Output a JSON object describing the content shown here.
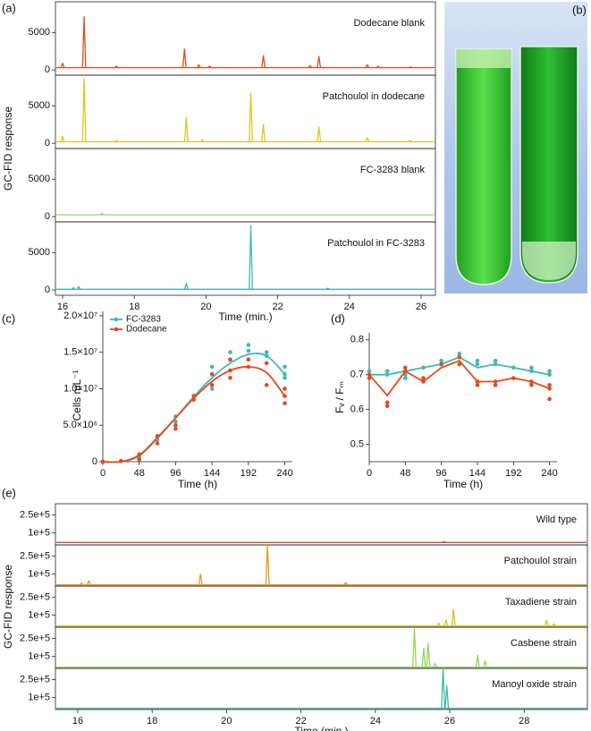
{
  "chart_data": [
    {
      "type": "chromatogram",
      "panel_label": "(a)",
      "ylabel": "GC-FID response",
      "xlabel": "Time (min.)",
      "xlim": [
        15.8,
        26.4
      ],
      "xticks": [
        16,
        18,
        20,
        22,
        24,
        26
      ],
      "ylim": [
        -700,
        9100
      ],
      "yticks": [
        0,
        5000
      ],
      "series": [
        {
          "name": "Dodecane blank",
          "color": "#e8481c",
          "baseline": 300,
          "peak_x": [
            16.0,
            16.6,
            17.5,
            19.4,
            19.8,
            20.1,
            21.6,
            22.9,
            23.15,
            24.5,
            24.8,
            25.7
          ],
          "peak_height": [
            900,
            7100,
            500,
            2800,
            700,
            500,
            1900,
            600,
            1800,
            700,
            500,
            400
          ]
        },
        {
          "name": "Patchoulol in dodecane",
          "color": "#e7c21c",
          "baseline": 200,
          "peak_x": [
            16.0,
            16.6,
            17.5,
            19.45,
            19.9,
            21.25,
            21.6,
            23.15,
            24.5,
            25.7
          ],
          "peak_height": [
            900,
            8700,
            400,
            3500,
            500,
            6700,
            2500,
            2200,
            800,
            400
          ]
        },
        {
          "name": "FC-3283 blank",
          "color": "#a5d57e",
          "baseline": 250,
          "peak_x": [
            17.1
          ],
          "peak_height": [
            450
          ]
        },
        {
          "name": "Patchoulol in FC-3283",
          "color": "#3cbab2",
          "baseline": 100,
          "peak_x": [
            16.3,
            16.45,
            19.45,
            21.25,
            23.4
          ],
          "peak_height": [
            300,
            450,
            900,
            8600,
            250
          ]
        }
      ]
    },
    {
      "type": "photo",
      "panel_label": "(b)"
    },
    {
      "type": "scatter",
      "panel_label": "(c)",
      "ylabel": "Cells mL⁻¹",
      "xlabel": "Time (h)",
      "legend": "upper left",
      "xlim": [
        0,
        250
      ],
      "xticks": [
        0,
        48,
        96,
        144,
        192,
        240
      ],
      "ylim": [
        0,
        20600000
      ],
      "yticks": [
        0,
        {
          "value": 5000000,
          "label": "5.0×10⁶"
        },
        {
          "value": 10000000,
          "label": "1.0×10⁷"
        },
        {
          "value": 15000000,
          "label": "1.5×10⁷"
        },
        {
          "value": 20000000,
          "label": "2.0×10⁷"
        }
      ],
      "series": [
        {
          "name": "FC-3283",
          "color": "#3cbab2",
          "x": [
            0,
            0,
            24,
            48,
            48,
            72,
            72,
            96,
            96,
            120,
            120,
            144,
            144,
            144,
            168,
            168,
            192,
            192,
            192,
            216,
            216,
            240,
            240,
            240
          ],
          "values": [
            0,
            0,
            100000,
            500000,
            800000,
            3500000,
            3000000,
            5500000,
            6200000,
            9000000,
            8500000,
            12000000,
            13000000,
            10000000,
            14000000,
            15000000,
            16000000,
            15200000,
            14000000,
            14500000,
            15000000,
            12000000,
            11500000,
            13000000
          ],
          "fit_x": [
            0,
            24,
            48,
            72,
            96,
            120,
            144,
            168,
            192,
            216,
            240
          ],
          "fit_values": [
            0,
            0,
            800000,
            3200000,
            6000000,
            8900000,
            11500000,
            13500000,
            14700000,
            14500000,
            12000000
          ]
        },
        {
          "name": "Dodecane",
          "color": "#e8481c",
          "x": [
            0,
            0,
            24,
            48,
            48,
            72,
            72,
            96,
            96,
            120,
            120,
            144,
            144,
            168,
            168,
            168,
            192,
            192,
            216,
            216,
            240,
            240,
            240
          ],
          "values": [
            0,
            0,
            100000,
            300000,
            1000000,
            2500000,
            3500000,
            4500000,
            5000000,
            8500000,
            9000000,
            10500000,
            12000000,
            11500000,
            12500000,
            14000000,
            13000000,
            14000000,
            13500000,
            10500000,
            8000000,
            9000000,
            10000000
          ],
          "fit_x": [
            0,
            24,
            48,
            72,
            96,
            120,
            144,
            168,
            192,
            216,
            240
          ],
          "fit_values": [
            0,
            0,
            900000,
            3300000,
            6000000,
            8700000,
            11000000,
            12500000,
            13000000,
            12200000,
            9000000
          ]
        }
      ]
    },
    {
      "type": "line",
      "panel_label": "(d)",
      "ylabel": "Fᵥ / Fₘ",
      "xlabel": "Time (h)",
      "xlim": [
        0,
        250
      ],
      "xticks": [
        0,
        48,
        96,
        144,
        192,
        240
      ],
      "ylim": [
        0.45,
        0.82
      ],
      "yticks": [
        0.5,
        0.6,
        0.7,
        0.8
      ],
      "series": [
        {
          "color": "#3cbab2",
          "x": [
            0,
            24,
            48,
            72,
            96,
            120,
            144,
            168,
            192,
            216,
            240
          ],
          "values": [
            0.7,
            0.7,
            0.71,
            0.72,
            0.73,
            0.75,
            0.72,
            0.73,
            0.72,
            0.71,
            0.7
          ],
          "point_x": [
            0,
            24,
            24,
            48,
            48,
            72,
            96,
            96,
            120,
            120,
            144,
            144,
            168,
            168,
            192,
            216,
            216,
            240,
            240
          ],
          "point_values": [
            0.71,
            0.71,
            0.7,
            0.7,
            0.69,
            0.72,
            0.74,
            0.73,
            0.76,
            0.75,
            0.73,
            0.74,
            0.74,
            0.73,
            0.72,
            0.72,
            0.71,
            0.7,
            0.71
          ]
        },
        {
          "color": "#e8481c",
          "x": [
            0,
            24,
            48,
            72,
            96,
            120,
            144,
            168,
            192,
            216,
            240
          ],
          "values": [
            0.7,
            0.64,
            0.71,
            0.68,
            0.72,
            0.74,
            0.68,
            0.68,
            0.69,
            0.68,
            0.66
          ],
          "point_x": [
            0,
            0,
            24,
            24,
            48,
            48,
            72,
            72,
            96,
            120,
            120,
            144,
            144,
            168,
            168,
            192,
            216,
            216,
            240,
            240,
            240
          ],
          "point_values": [
            0.7,
            0.69,
            0.62,
            0.61,
            0.72,
            0.71,
            0.68,
            0.69,
            0.73,
            0.75,
            0.73,
            0.68,
            0.67,
            0.68,
            0.67,
            0.69,
            0.68,
            0.67,
            0.67,
            0.66,
            0.63
          ]
        }
      ]
    },
    {
      "type": "chromatogram",
      "panel_label": "(e)",
      "ylabel": "GC-FID response",
      "xlabel": "Time (min.)",
      "xlim": [
        15.4,
        29.7
      ],
      "xticks": [
        16,
        18,
        20,
        22,
        24,
        26,
        28
      ],
      "ylim": [
        0,
        345000
      ],
      "yticks": [
        {
          "value": 100000,
          "label": "1e+5"
        },
        {
          "value": 250000,
          "label": "2.5e+5"
        }
      ],
      "series": [
        {
          "name": "Wild type",
          "color": "#c9512c",
          "baseline": 20000,
          "peak_x": [
            25.85
          ],
          "peak_height": [
            28000
          ]
        },
        {
          "name": "Patchoulol strain",
          "color": "#e39a1c",
          "baseline": 10000,
          "peak_x": [
            16.1,
            16.3,
            19.3,
            21.1,
            23.2
          ],
          "peak_height": [
            25000,
            45000,
            100000,
            340000,
            30000
          ]
        },
        {
          "name": "Taxadiene strain",
          "color": "#d9c21a",
          "baseline": 10000,
          "peak_x": [
            25.7,
            25.9,
            26.1,
            28.6,
            28.8
          ],
          "peak_height": [
            35000,
            60000,
            150000,
            60000,
            30000
          ]
        },
        {
          "name": "Casbene strain",
          "color": "#93d65e",
          "baseline": 10000,
          "peak_x": [
            25.05,
            25.3,
            25.42,
            25.6,
            26.75,
            26.95
          ],
          "peak_height": [
            330000,
            170000,
            210000,
            40000,
            110000,
            65000
          ]
        },
        {
          "name": "Manoyl oxide strain",
          "color": "#3cbab2",
          "baseline": 10000,
          "peak_x": [
            25.82,
            25.92
          ],
          "peak_height": [
            345000,
            200000
          ]
        }
      ]
    }
  ]
}
